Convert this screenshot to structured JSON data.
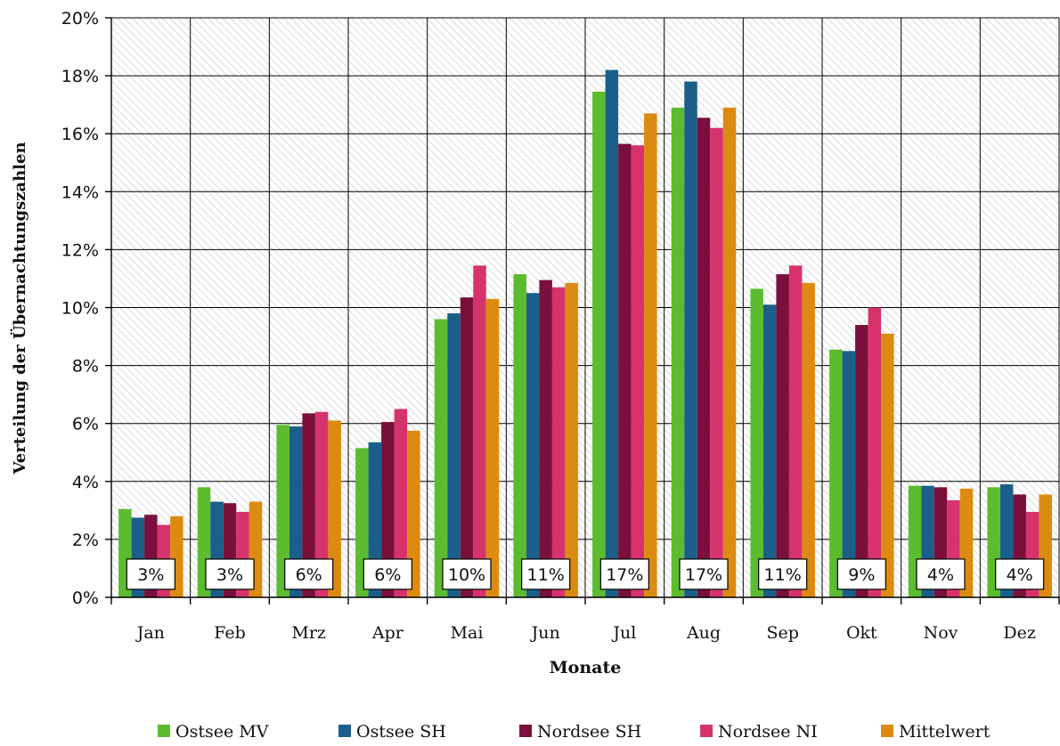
{
  "chart_data": {
    "type": "bar",
    "title": "",
    "xlabel": "Monate",
    "ylabel": "Verteilung der Übernachtungszahlen",
    "ylim": [
      0,
      20
    ],
    "yticks": [
      "0%",
      "2%",
      "4%",
      "6%",
      "8%",
      "10%",
      "12%",
      "14%",
      "16%",
      "18%",
      "20%"
    ],
    "grid": true,
    "legend_position": "bottom",
    "categories": [
      "Jan",
      "Feb",
      "Mrz",
      "Apr",
      "Mai",
      "Jun",
      "Jul",
      "Aug",
      "Sep",
      "Okt",
      "Nov",
      "Dez"
    ],
    "series": [
      {
        "name": "Ostsee MV",
        "color": "#5dbb2f",
        "values": [
          3.05,
          3.8,
          5.95,
          5.15,
          9.6,
          11.15,
          17.45,
          16.9,
          10.65,
          8.55,
          3.85,
          3.8
        ]
      },
      {
        "name": "Ostsee SH",
        "color": "#1a5f8a",
        "values": [
          2.75,
          3.3,
          5.9,
          5.35,
          9.8,
          10.5,
          18.2,
          17.8,
          10.1,
          8.5,
          3.85,
          3.9
        ]
      },
      {
        "name": "Nordsee SH",
        "color": "#7a0f3c",
        "values": [
          2.85,
          3.25,
          6.35,
          6.05,
          10.35,
          10.95,
          15.65,
          16.55,
          11.15,
          9.4,
          3.8,
          3.55
        ]
      },
      {
        "name": "Nordsee NI",
        "color": "#d6336c",
        "values": [
          2.5,
          2.95,
          6.4,
          6.5,
          11.45,
          10.7,
          15.6,
          16.2,
          11.45,
          10.0,
          3.35,
          2.95
        ]
      },
      {
        "name": "Mittelwert",
        "color": "#dc8b10",
        "values": [
          2.8,
          3.3,
          6.1,
          5.75,
          10.3,
          10.85,
          16.7,
          16.9,
          10.85,
          9.1,
          3.75,
          3.55
        ]
      }
    ],
    "data_labels": [
      "3%",
      "3%",
      "6%",
      "6%",
      "10%",
      "11%",
      "17%",
      "17%",
      "11%",
      "9%",
      "4%",
      "4%"
    ]
  }
}
